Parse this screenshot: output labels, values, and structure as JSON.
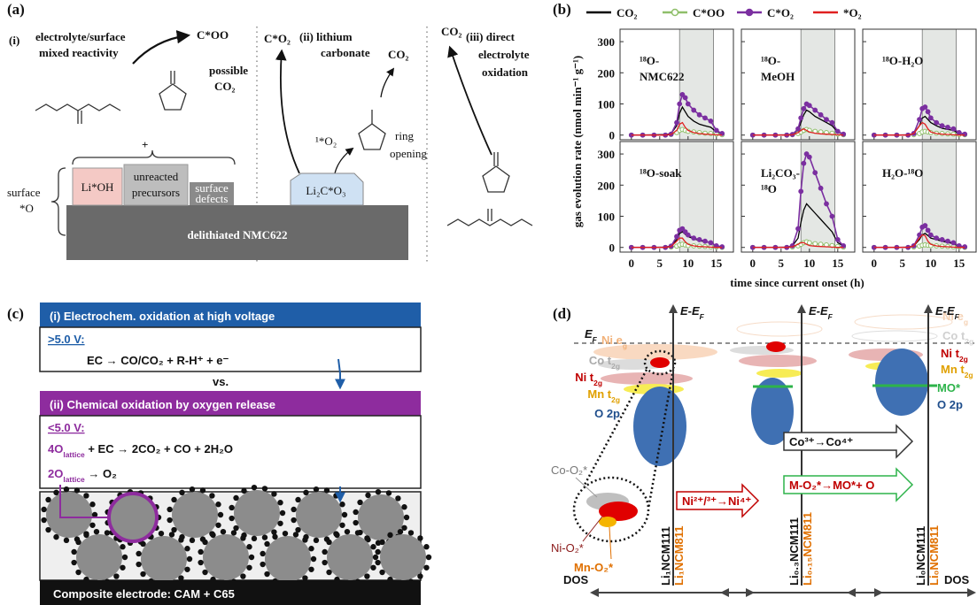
{
  "panel_a": {
    "label": "(a)",
    "i_num": "(i)",
    "i_line1": "electrolyte/surface",
    "i_line2": "mixed reactivity",
    "coo": "C*OO",
    "possible": "possible",
    "possible_co2": "CO₂",
    "plus": "+",
    "surface": "surface",
    "surface_o": "*O",
    "lioh": "Li*OH",
    "precursors_1": "unreacted",
    "precursors_2": "precursors",
    "defects_1": "surface",
    "defects_2": "defects",
    "substrate": "delithiated NMC622",
    "ii_co2star": "C*O₂",
    "ii_line1": "(ii) lithium",
    "ii_line2": "carbonate",
    "ii_co2": "CO₂",
    "ii_o2": "¹*O₂",
    "ii_ring_1": "ring",
    "ii_ring_2": "opening",
    "li2co3": "Li₂C*O₃",
    "iii_co2": "CO₂",
    "iii_line1": "(iii) direct",
    "iii_line2": "electrolyte",
    "iii_line3": "oxidation"
  },
  "chart_data": {
    "type": "line",
    "label": "(b)",
    "xlabel": "time since current onset (h)",
    "ylabel": "gas evolution rate (nmol min⁻¹ g⁻¹)",
    "xlim": [
      -2,
      18
    ],
    "ylim": [
      -15,
      340
    ],
    "xticks": [
      0,
      5,
      10,
      15
    ],
    "yticks": [
      0,
      100,
      200,
      300
    ],
    "highlight_x": [
      8.5,
      14.5
    ],
    "x": [
      0,
      2,
      4,
      6,
      7,
      8,
      8.5,
      9,
      9.5,
      10,
      11,
      12,
      13,
      14,
      15,
      16
    ],
    "series": [
      {
        "name": "CO₂",
        "color": "#000000",
        "marker": "none"
      },
      {
        "name": "C*OO",
        "color": "#8fbf6a",
        "marker": "hollow"
      },
      {
        "name": "C*O₂",
        "color": "#7b2fa0",
        "marker": "filled"
      },
      {
        "name": "*O₂",
        "color": "#e02020",
        "marker": "none"
      }
    ],
    "panels": [
      {
        "title": [
          "¹⁸O-",
          "NMC622"
        ],
        "values": [
          [
            0,
            0,
            1,
            2,
            5,
            30,
            70,
            90,
            75,
            60,
            45,
            35,
            30,
            25,
            10,
            5
          ],
          [
            0,
            0,
            0,
            0,
            2,
            8,
            15,
            18,
            15,
            12,
            10,
            8,
            6,
            5,
            3,
            1
          ],
          [
            0,
            0,
            0,
            0,
            3,
            40,
            100,
            130,
            120,
            100,
            80,
            65,
            55,
            45,
            15,
            5
          ],
          [
            0,
            0,
            0,
            0,
            2,
            15,
            35,
            40,
            25,
            15,
            8,
            5,
            3,
            2,
            1,
            0
          ]
        ]
      },
      {
        "title": [
          "¹⁸O-",
          "MeOH"
        ],
        "values": [
          [
            0,
            0,
            0,
            1,
            3,
            15,
            40,
            65,
            80,
            75,
            60,
            50,
            40,
            30,
            10,
            3
          ],
          [
            0,
            0,
            0,
            0,
            1,
            5,
            10,
            15,
            18,
            15,
            12,
            10,
            8,
            6,
            3,
            1
          ],
          [
            0,
            0,
            0,
            0,
            2,
            20,
            55,
            85,
            100,
            95,
            80,
            65,
            50,
            40,
            12,
            3
          ],
          [
            0,
            0,
            0,
            0,
            1,
            8,
            15,
            20,
            15,
            10,
            6,
            4,
            3,
            2,
            1,
            0
          ]
        ]
      },
      {
        "title": [
          "¹⁸O-H₂O"
        ],
        "values": [
          [
            0,
            0,
            0,
            1,
            5,
            30,
            55,
            60,
            50,
            40,
            30,
            22,
            18,
            15,
            5,
            2
          ],
          [
            0,
            0,
            0,
            0,
            1,
            5,
            10,
            12,
            10,
            8,
            6,
            5,
            4,
            3,
            2,
            1
          ],
          [
            0,
            0,
            0,
            0,
            5,
            50,
            85,
            90,
            75,
            55,
            40,
            30,
            25,
            20,
            8,
            3
          ],
          [
            0,
            0,
            0,
            0,
            5,
            30,
            40,
            35,
            20,
            10,
            5,
            3,
            2,
            1,
            0,
            0
          ]
        ]
      },
      {
        "title": [
          "¹⁸O-soak"
        ],
        "values": [
          [
            0,
            0,
            0,
            1,
            5,
            25,
            45,
            50,
            42,
            35,
            28,
            22,
            18,
            15,
            5,
            2
          ],
          [
            0,
            0,
            0,
            0,
            1,
            4,
            8,
            10,
            8,
            6,
            5,
            4,
            3,
            2,
            1,
            0
          ],
          [
            0,
            0,
            0,
            0,
            4,
            35,
            55,
            60,
            50,
            40,
            30,
            25,
            20,
            15,
            5,
            2
          ],
          [
            0,
            0,
            0,
            0,
            3,
            20,
            30,
            30,
            18,
            10,
            5,
            3,
            2,
            1,
            0,
            0
          ]
        ]
      },
      {
        "title": [
          "Li₂CO₃-",
          "¹⁸O"
        ],
        "values": [
          [
            0,
            0,
            0,
            1,
            5,
            30,
            80,
            120,
            140,
            130,
            110,
            90,
            70,
            50,
            15,
            5
          ],
          [
            0,
            0,
            0,
            0,
            1,
            5,
            10,
            15,
            18,
            15,
            12,
            10,
            8,
            6,
            3,
            1
          ],
          [
            0,
            0,
            0,
            0,
            5,
            60,
            180,
            270,
            300,
            290,
            240,
            190,
            140,
            100,
            25,
            5
          ],
          [
            0,
            0,
            0,
            0,
            2,
            10,
            15,
            15,
            10,
            6,
            4,
            3,
            2,
            1,
            0,
            0
          ]
        ]
      },
      {
        "title": [
          "H₂O-¹⁸O"
        ],
        "values": [
          [
            0,
            0,
            0,
            1,
            5,
            25,
            40,
            45,
            38,
            30,
            25,
            20,
            16,
            12,
            4,
            1
          ],
          [
            0,
            0,
            0,
            0,
            1,
            4,
            7,
            8,
            7,
            6,
            5,
            4,
            3,
            2,
            1,
            0
          ],
          [
            0,
            0,
            0,
            0,
            5,
            40,
            65,
            70,
            55,
            40,
            30,
            25,
            20,
            15,
            5,
            2
          ],
          [
            0,
            0,
            0,
            0,
            5,
            30,
            40,
            38,
            20,
            10,
            5,
            3,
            2,
            1,
            0,
            0
          ]
        ]
      }
    ]
  },
  "panel_c": {
    "label": "(c)",
    "header_i": "(i) Electrochem. oxidation at high voltage",
    "high_v": ">5.0 V:",
    "eq1": "EC → CO/CO₂ + R-H⁺ + e⁻",
    "vs": "vs.",
    "header_ii": "(ii) Chemical oxidation by oxygen release",
    "low_v": "<5.0 V:",
    "eq2": [
      {
        "text": "4O",
        "color": "#8e2c9e"
      },
      {
        "text": "lattice",
        "sub": true,
        "color": "#8e2c9e"
      },
      {
        "text": " + EC → 2CO₂ + CO + 2H₂O"
      }
    ],
    "eq3": [
      {
        "text": "2O",
        "color": "#8e2c9e"
      },
      {
        "text": "lattice",
        "sub": true,
        "color": "#8e2c9e"
      },
      {
        "text": " → O₂"
      }
    ],
    "electrode": "Composite electrode: CAM + C65"
  },
  "panel_d": {
    "label": "(d)",
    "axis_label": [
      {
        "text": "E-E"
      },
      {
        "text": "F",
        "sub": true
      }
    ],
    "fermi": [
      {
        "text": "E"
      },
      {
        "text": "F",
        "sub": true
      }
    ],
    "ni_eg": [
      {
        "text": "Ni e"
      },
      {
        "text": "g",
        "sub": true
      }
    ],
    "co_t2g": [
      {
        "text": "Co t"
      },
      {
        "text": "2g",
        "sub": true
      }
    ],
    "ni_t2g": [
      {
        "text": "Ni t"
      },
      {
        "text": "2g",
        "sub": true
      }
    ],
    "mn_t2g": [
      {
        "text": "Mn t"
      },
      {
        "text": "2g",
        "sub": true
      }
    ],
    "o2p": "O 2p",
    "mo": "MO*",
    "co_o2": "Co-O₂*",
    "ni_o2": "Ni-O₂*",
    "mn_o2": "Mn-O₂*",
    "arrow_ni": "Ni²⁺/³⁺→Ni⁴⁺",
    "arrow_co": "Co³⁺→Co⁴⁺",
    "arrow_mo": "M-O₂*→MO*+ O",
    "dos": "DOS",
    "col1_a": "Li₁NCM111",
    "col1_b": "Li₁NCM811",
    "col2_a": "Li₀.₃NCM111",
    "col2_b": "Li₀.₁₅NCM811",
    "col3_a": "Li₀NCM111",
    "col3_b": "Li₀NCM811"
  }
}
